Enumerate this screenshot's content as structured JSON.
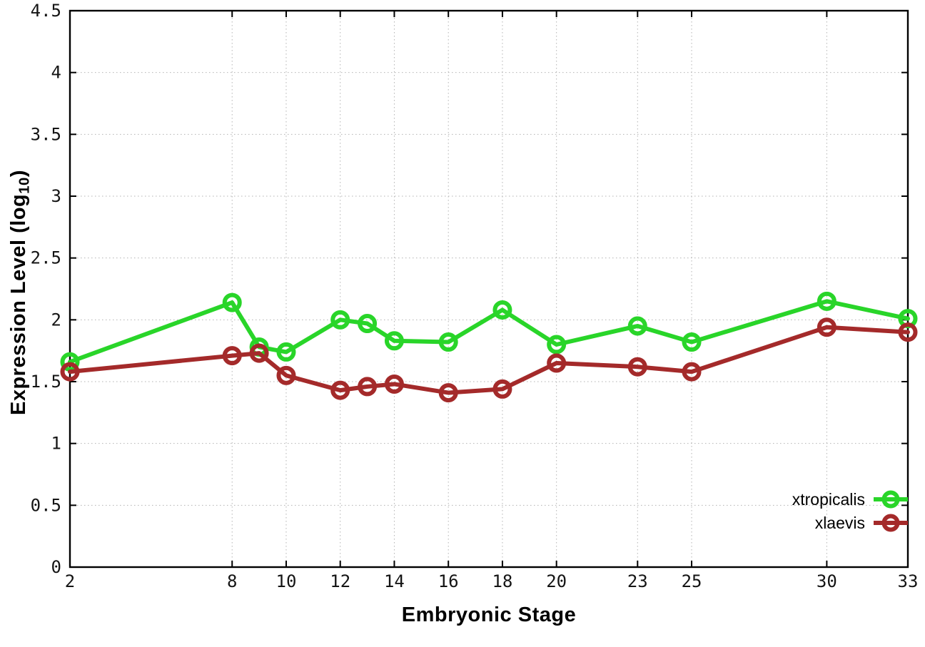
{
  "chart_data": {
    "type": "line",
    "title": "",
    "xlabel": "Embryonic Stage",
    "ylabel": {
      "prefix": "Expression Level (log",
      "subscript": "10",
      "suffix": ")"
    },
    "x": [
      2,
      8,
      9,
      10,
      12,
      13,
      14,
      16,
      18,
      20,
      23,
      25,
      30,
      33
    ],
    "series": [
      {
        "name": "xtropicalis",
        "color": "#29d529",
        "values": [
          1.66,
          2.14,
          1.78,
          1.74,
          2.0,
          1.97,
          1.83,
          1.82,
          2.08,
          1.8,
          1.95,
          1.82,
          2.15,
          2.01
        ]
      },
      {
        "name": "xlaevis",
        "color": "#a42a2a",
        "values": [
          1.58,
          1.71,
          1.73,
          1.55,
          1.43,
          1.46,
          1.48,
          1.41,
          1.44,
          1.65,
          1.62,
          1.58,
          1.94,
          1.9
        ]
      }
    ],
    "xticks": [
      2,
      8,
      10,
      12,
      14,
      16,
      18,
      20,
      23,
      25,
      30,
      33
    ],
    "yticks": [
      0,
      0.5,
      1,
      1.5,
      2,
      2.5,
      3,
      3.5,
      4,
      4.5
    ],
    "xlim": [
      2,
      33
    ],
    "ylim": [
      0,
      4.5
    ],
    "grid": true,
    "legend_position": "bottom-right",
    "colors": {
      "axis": "#000000",
      "grid": "#b3b3b3",
      "tick_label": "#141414",
      "background": "#ffffff"
    }
  }
}
